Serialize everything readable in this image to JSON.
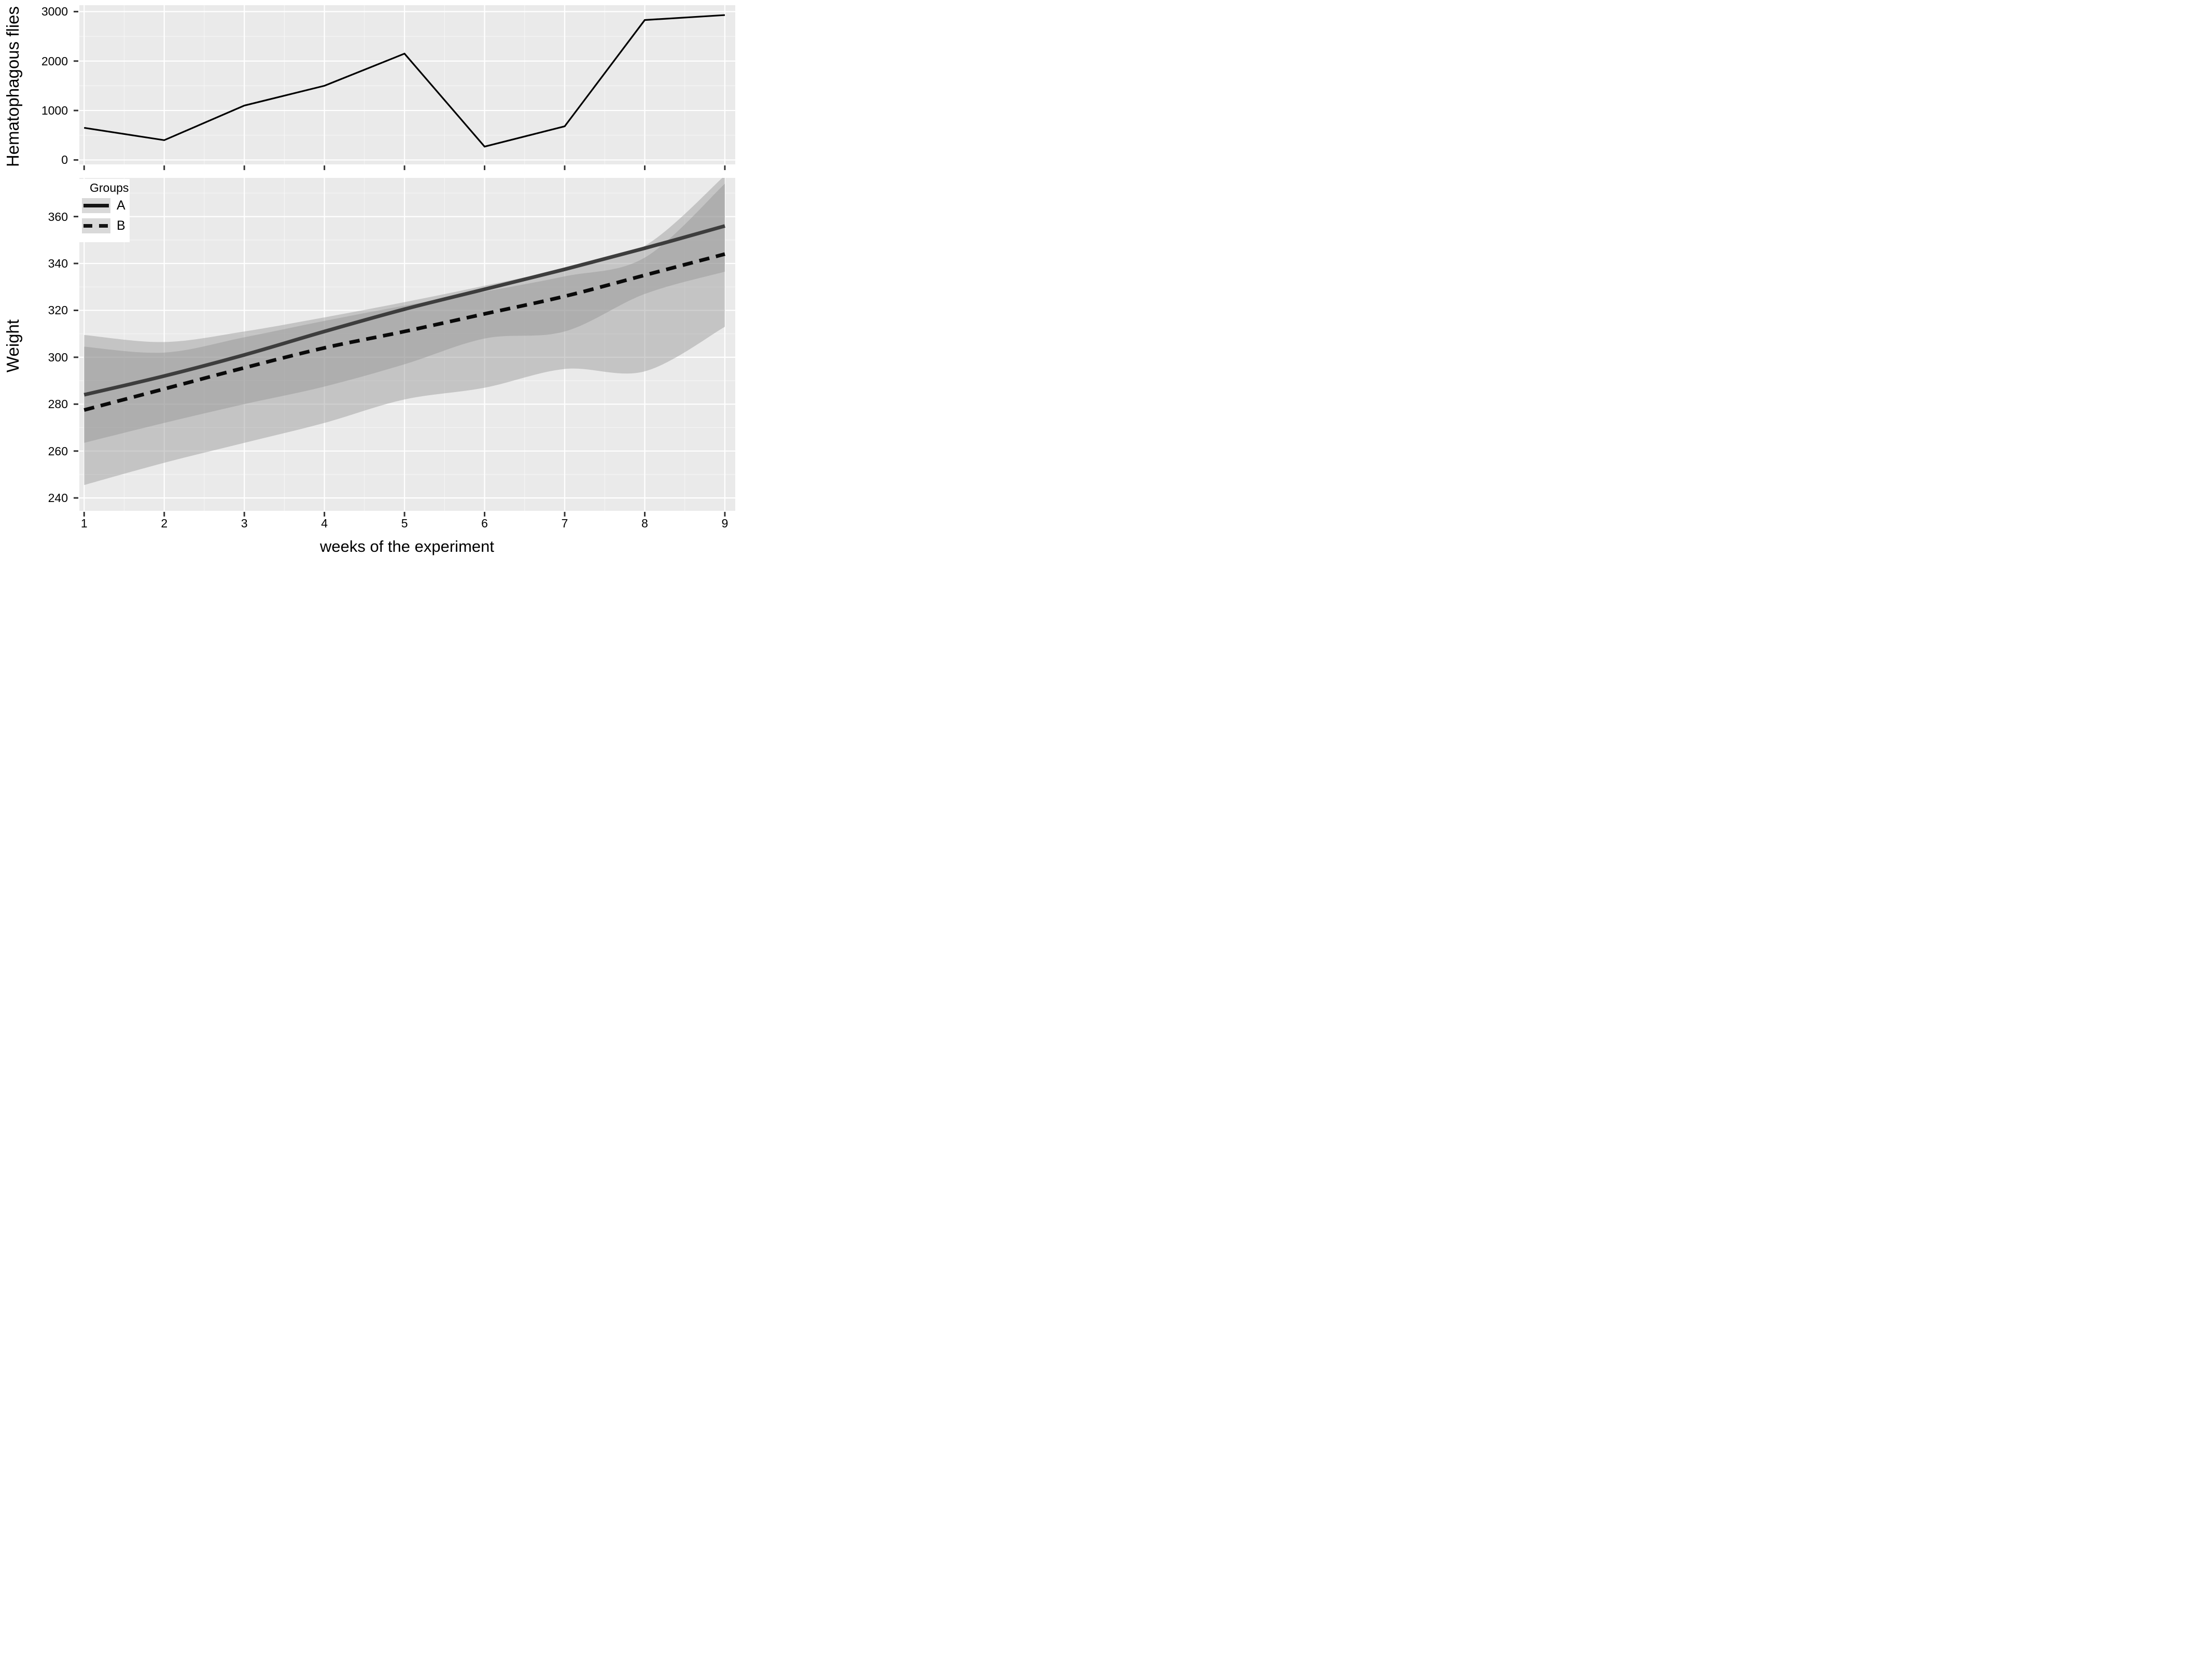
{
  "figure": {
    "bg": "#ffffff",
    "panel_bg": "#eaeaea"
  },
  "colors": {
    "grid_major": "#ffffff",
    "grid_minor": "#ffffff",
    "ribbon_fill": "#8f8f8f",
    "ribbon_single_visual": "#c6c6c6",
    "ribbon_overlap_visual": "#aeaeae",
    "line_a": "#3d3d3d",
    "line_b": "#0a0a0a",
    "flies_line": "#000000",
    "tick_mark": "#333333",
    "text": "#000000",
    "legend_key_bg": "#d9d9d9"
  },
  "legend": {
    "title": "Groups",
    "items": [
      {
        "label": "A",
        "line_style": "solid"
      },
      {
        "label": "B",
        "line_style": "dashed"
      }
    ]
  },
  "chart_data": [
    {
      "id": "flies",
      "type": "line",
      "title": "",
      "xlabel": "",
      "ylabel": "Hematophagous flies",
      "x": [
        1,
        2,
        3,
        4,
        5,
        6,
        7,
        8,
        9
      ],
      "values": [
        650,
        400,
        1100,
        1500,
        2150,
        270,
        680,
        2830,
        2930
      ],
      "yticks": [
        0,
        1000,
        2000,
        3000
      ],
      "yminor": [
        500,
        1500,
        2500
      ],
      "ylim": [
        -90,
        3130
      ],
      "xticks": [
        1,
        2,
        3,
        4,
        5,
        6,
        7,
        8,
        9
      ],
      "xminor": [
        1.5,
        2.5,
        3.5,
        4.5,
        5.5,
        6.5,
        7.5,
        8.5
      ],
      "xlim": [
        0.94,
        9.13
      ],
      "x_tick_labels_shown": false,
      "grid": true,
      "legend_position": "none"
    },
    {
      "id": "weight",
      "type": "line",
      "title": "",
      "xlabel": "weeks of the experiment",
      "ylabel": "Weight",
      "x": [
        1,
        2,
        3,
        4,
        5,
        6,
        7,
        8,
        9
      ],
      "series": [
        {
          "name": "A",
          "line_style": "solid",
          "values": [
            284,
            292,
            301,
            311,
            320.5,
            329,
            337.5,
            346.5,
            356
          ],
          "ribbon_lower": [
            263.5,
            272,
            280,
            287.5,
            297,
            308,
            311,
            327,
            336.5
          ],
          "ribbon_upper": [
            309.5,
            306.5,
            311,
            317,
            323.5,
            330.5,
            338,
            347.5,
            377.5
          ]
        },
        {
          "name": "B",
          "line_style": "dashed",
          "values": [
            277.5,
            286.5,
            295.5,
            304,
            311,
            318.5,
            326,
            335,
            344
          ],
          "ribbon_lower": [
            245.5,
            255,
            263.5,
            272,
            282,
            287,
            295,
            294,
            313
          ],
          "ribbon_upper": [
            304.5,
            302,
            308.5,
            315.5,
            322,
            328,
            334.5,
            342.5,
            374
          ]
        }
      ],
      "yticks": [
        240,
        260,
        280,
        300,
        320,
        340,
        360
      ],
      "yminor": [
        250,
        270,
        290,
        310,
        330,
        350,
        370
      ],
      "ylim": [
        234.5,
        376.5
      ],
      "xticks": [
        1,
        2,
        3,
        4,
        5,
        6,
        7,
        8,
        9
      ],
      "xminor": [
        1.5,
        2.5,
        3.5,
        4.5,
        5.5,
        6.5,
        7.5,
        8.5
      ],
      "xlim": [
        0.94,
        9.13
      ],
      "x_tick_labels_shown": true,
      "grid": true,
      "legend_position": "top-left"
    }
  ]
}
